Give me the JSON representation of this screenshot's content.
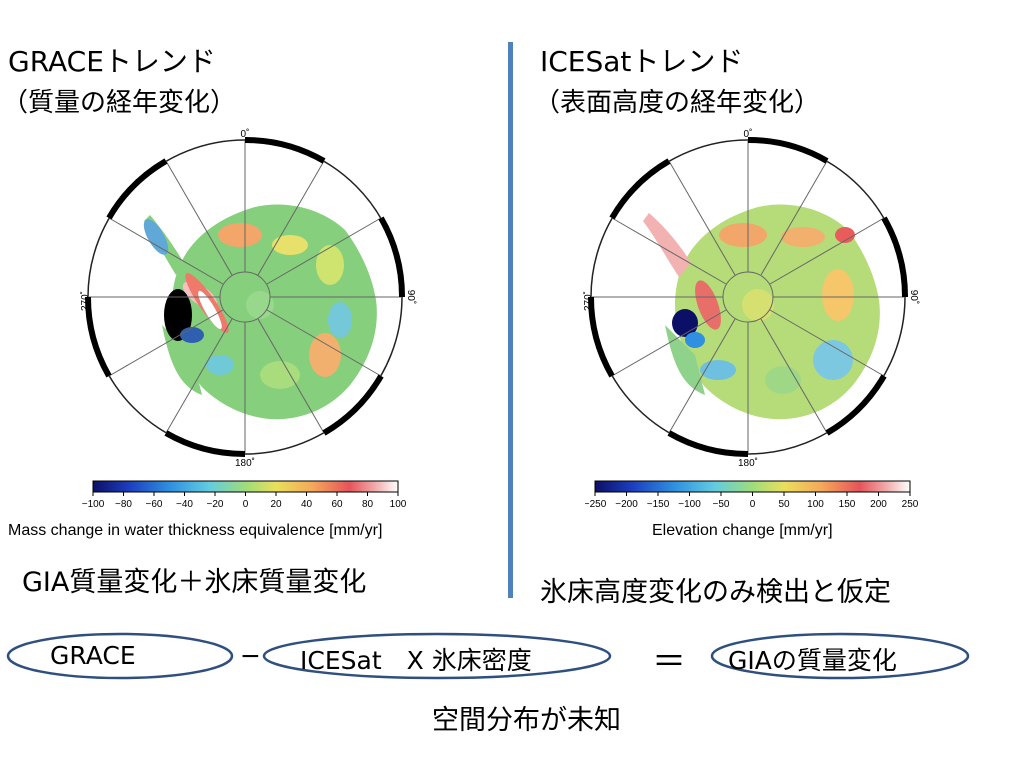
{
  "left_panel": {
    "title": "GRACEトレンド",
    "subtitle": "（質量の経年変化）",
    "lon_labels": {
      "top": "0˚",
      "right": "90˚",
      "bottom": "180˚",
      "left": "270˚"
    },
    "colorbar_ticks": [
      "−100",
      "−80",
      "−60",
      "−40",
      "−20",
      "0",
      "20",
      "40",
      "60",
      "80",
      "100"
    ],
    "colorbar_label": "Mass change in water thickness equivalence [mm/yr]",
    "note": "GIA質量変化＋氷床質量変化"
  },
  "right_panel": {
    "title": "ICESatトレンド",
    "subtitle": "（表面高度の経年変化）",
    "lon_labels": {
      "top": "0˚",
      "right": "90˚",
      "bottom": "180˚",
      "left": "270˚"
    },
    "colorbar_ticks": [
      "−250",
      "−200",
      "−150",
      "−100",
      "−50",
      "0",
      "50",
      "100",
      "150",
      "200",
      "250"
    ],
    "colorbar_label": "Elevation change [mm/yr]",
    "note": "氷床高度変化のみ検出と仮定"
  },
  "equation": {
    "term1": "GRACE",
    "minus": "−",
    "term2": "ICESat　X 氷床密度",
    "equals": "＝",
    "result": "GIAの質量変化",
    "footnote": "空間分布が未知"
  },
  "colors": {
    "divider": "#4f81bd",
    "ellipse_stroke": "#2f4f7f"
  }
}
